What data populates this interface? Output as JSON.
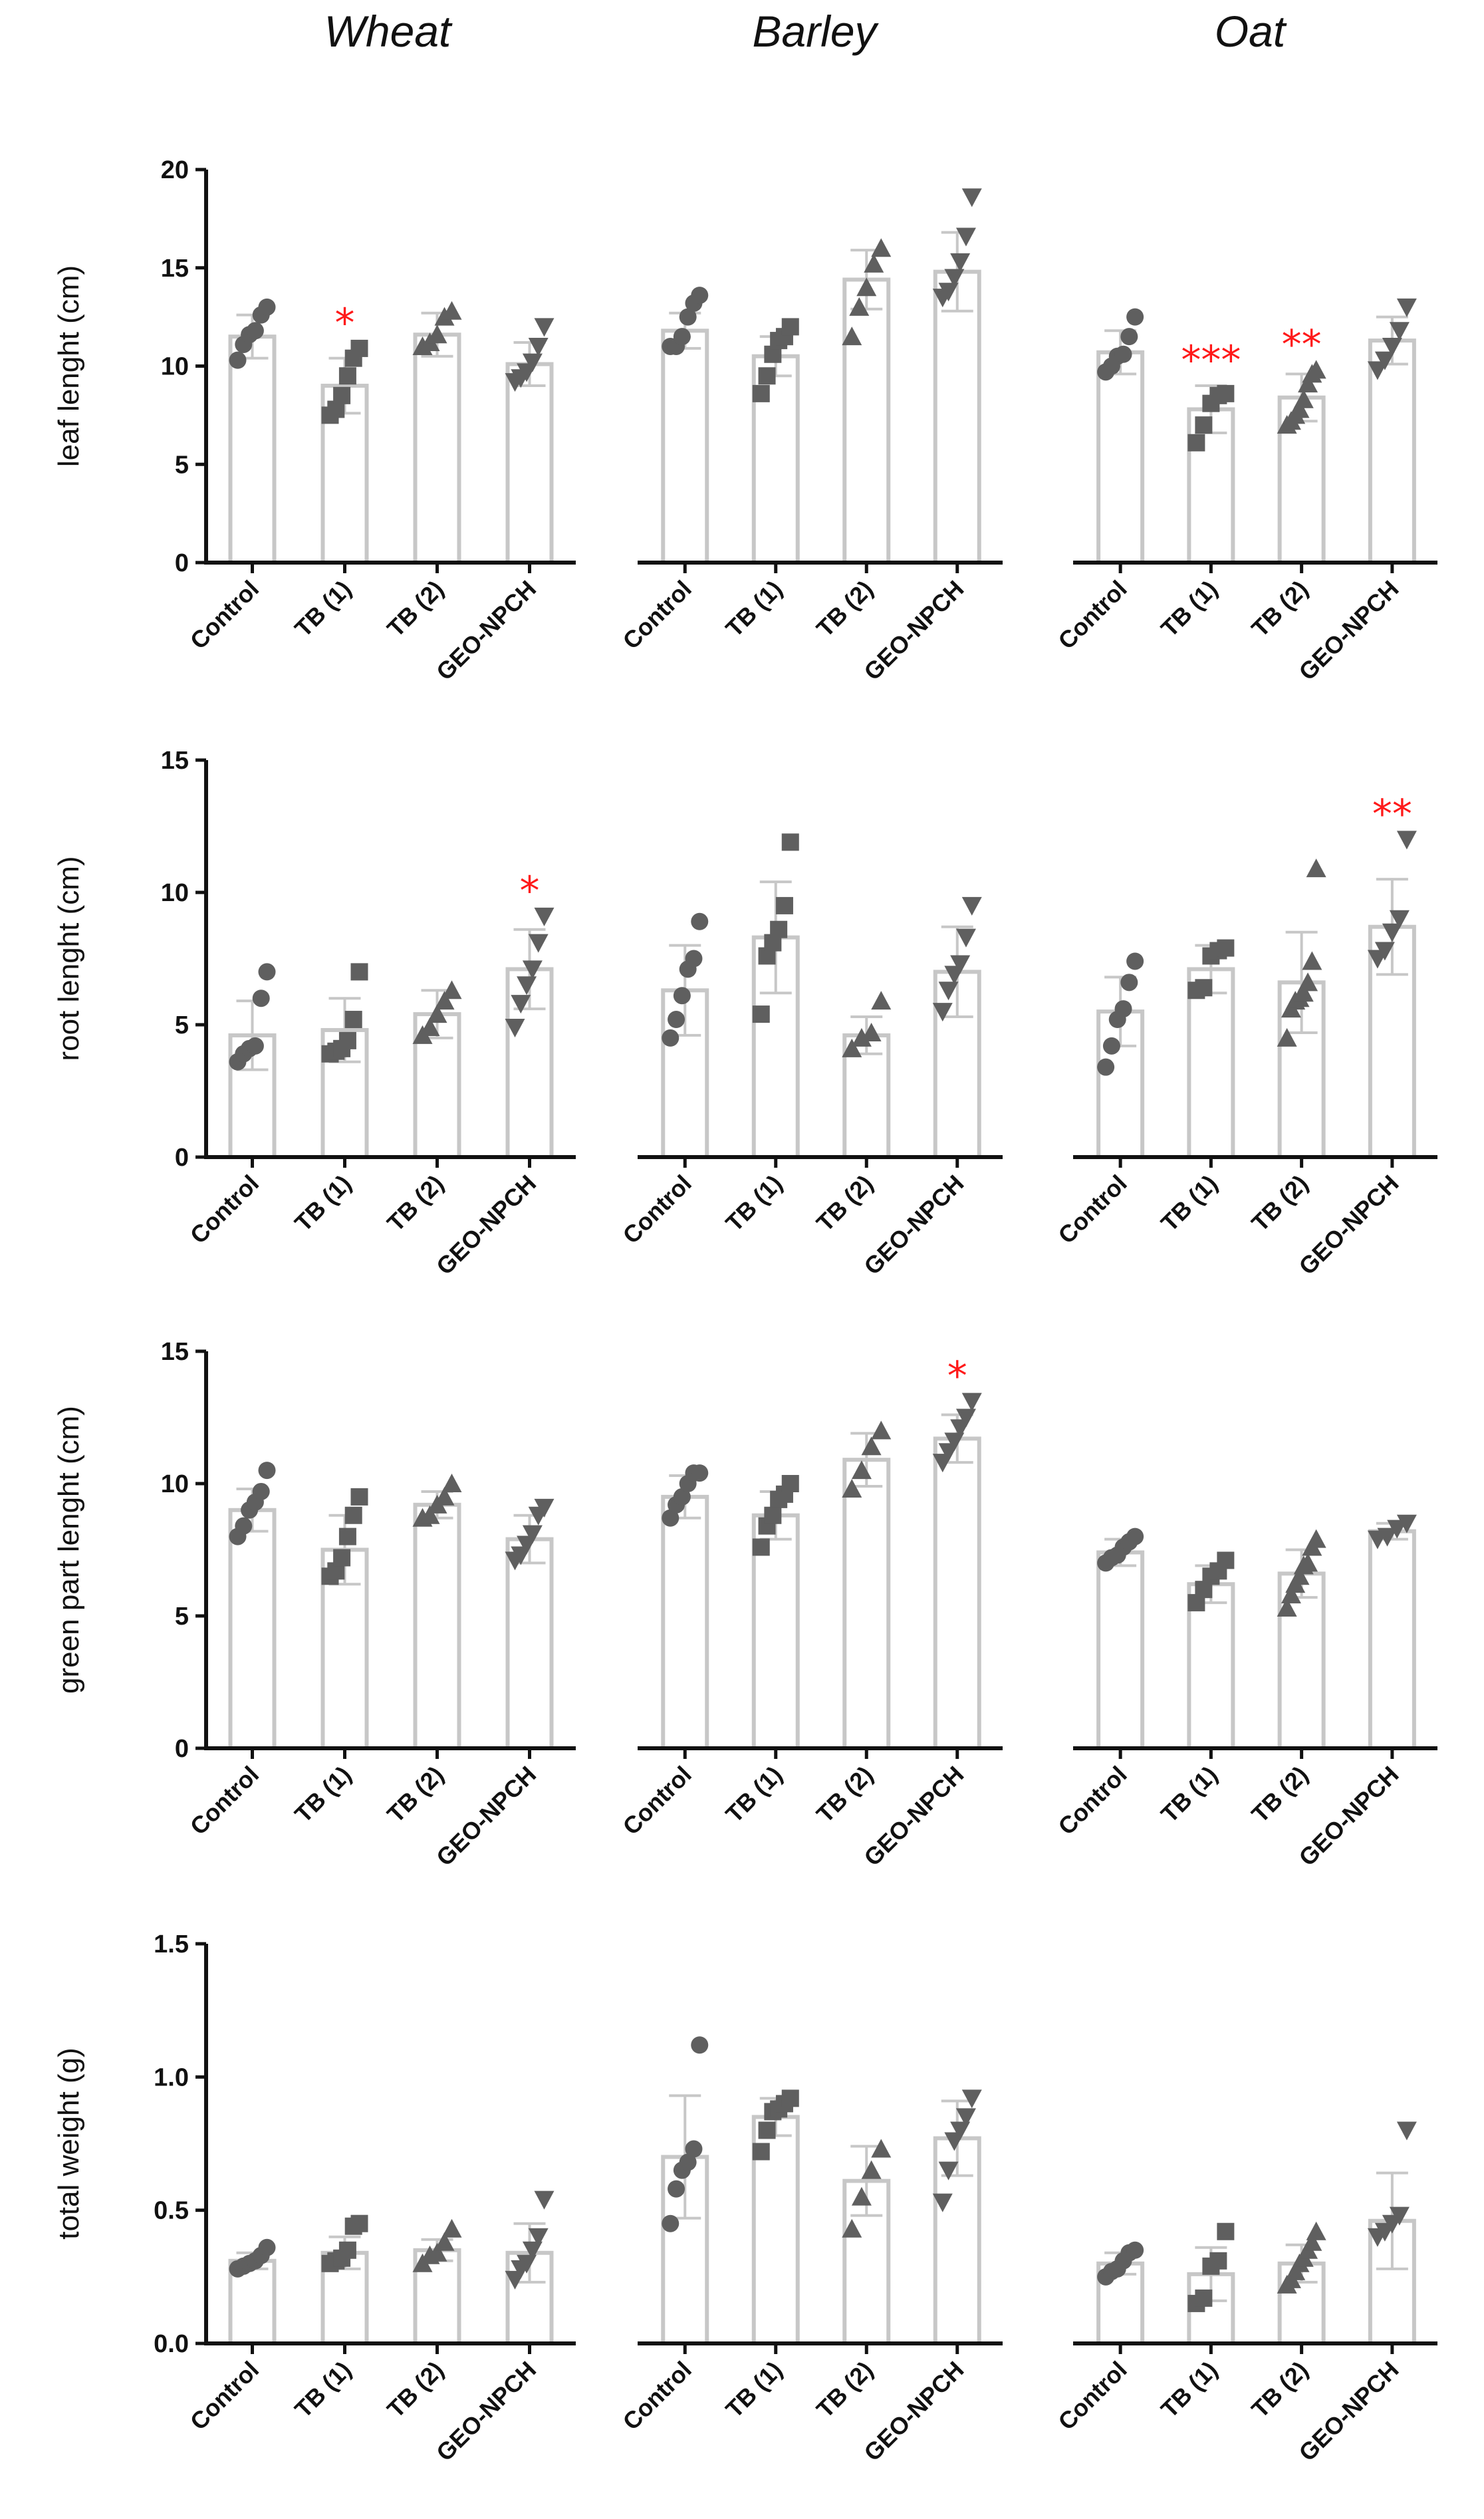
{
  "figure": {
    "columns": [
      "Wheat",
      "Barley",
      "Oat"
    ],
    "colors": {
      "bar": "#c7c7c7",
      "point": "#5f5f5f",
      "error": "#c7c7c7",
      "axis": "#111111",
      "significance": "#ff1a1a"
    },
    "markers": [
      "circle-icon",
      "square-icon",
      "triangle-up-icon",
      "triangle-down-icon"
    ]
  },
  "chart_data": [
    {
      "type": "bar",
      "title": "Wheat",
      "xlabel": "",
      "ylabel": "leaf lenght (cm)",
      "categories": [
        "Control",
        "TB (1)",
        "TB (2)",
        "GEO-NPCH"
      ],
      "ylim": [
        0,
        20
      ],
      "yticks": [
        "0",
        "5",
        "10",
        "15",
        "20"
      ],
      "show_y_axis": true,
      "means": [
        11.5,
        9.0,
        11.6,
        10.1
      ],
      "sd": [
        1.1,
        1.4,
        1.1,
        1.1
      ],
      "points": [
        [
          10.3,
          11.1,
          11.6,
          11.8,
          12.6,
          13.0
        ],
        [
          7.5,
          7.8,
          8.5,
          9.5,
          10.4,
          10.9
        ],
        [
          11.0,
          11.2,
          11.6,
          12.5,
          12.8
        ],
        [
          9.2,
          9.4,
          9.7,
          10.2,
          11.0,
          12.0
        ]
      ],
      "significance": [
        "",
        "*",
        "",
        ""
      ]
    },
    {
      "type": "bar",
      "title": "Barley",
      "xlabel": "",
      "ylabel": "",
      "categories": [
        "Control",
        "TB (1)",
        "TB (2)",
        "GEO-NPCH"
      ],
      "ylim": [
        0,
        20
      ],
      "yticks": [],
      "show_y_axis": false,
      "means": [
        11.8,
        10.5,
        14.4,
        14.8
      ],
      "sd": [
        0.9,
        1.0,
        1.5,
        2.0
      ],
      "points": [
        [
          11.0,
          11.0,
          11.5,
          12.5,
          13.2,
          13.6
        ],
        [
          8.6,
          9.5,
          10.6,
          11.3,
          11.5,
          12.0
        ],
        [
          11.5,
          13.0,
          14.0,
          15.2,
          16.0
        ],
        [
          13.5,
          13.8,
          14.5,
          15.3,
          16.6,
          18.6
        ]
      ],
      "significance": [
        "",
        "",
        "",
        ""
      ]
    },
    {
      "type": "bar",
      "title": "Oat",
      "xlabel": "",
      "ylabel": "",
      "categories": [
        "Control",
        "TB (1)",
        "TB (2)",
        "GEO-NPCH"
      ],
      "ylim": [
        0,
        20
      ],
      "yticks": [],
      "show_y_axis": false,
      "means": [
        10.7,
        7.8,
        8.4,
        11.3
      ],
      "sd": [
        1.1,
        1.2,
        1.2,
        1.2
      ],
      "points": [
        [
          9.7,
          10.0,
          10.5,
          10.6,
          11.5,
          12.5
        ],
        [
          6.1,
          7.0,
          8.1,
          8.5,
          8.6
        ],
        [
          7.0,
          7.2,
          7.5,
          7.8,
          8.3,
          9.1,
          9.6,
          9.8
        ],
        [
          9.8,
          10.3,
          11.0,
          11.8,
          13.0
        ]
      ],
      "significance": [
        "",
        "***",
        "**",
        ""
      ]
    },
    {
      "type": "bar",
      "title": "",
      "xlabel": "",
      "ylabel": "root lenght (cm)",
      "categories": [
        "Control",
        "TB (1)",
        "TB (2)",
        "GEO-NPCH"
      ],
      "ylim": [
        0,
        15
      ],
      "yticks": [
        "0",
        "5",
        "10",
        "15"
      ],
      "show_y_axis": true,
      "means": [
        4.6,
        4.8,
        5.4,
        7.1
      ],
      "sd": [
        1.3,
        1.2,
        0.9,
        1.5
      ],
      "points": [
        [
          3.6,
          3.9,
          4.1,
          4.2,
          6.0,
          7.0
        ],
        [
          3.9,
          4.0,
          4.1,
          4.4,
          5.2,
          7.0
        ],
        [
          4.6,
          4.9,
          5.4,
          5.9,
          6.3
        ],
        [
          4.9,
          5.8,
          6.5,
          7.1,
          8.1,
          9.1
        ]
      ],
      "significance": [
        "",
        "",
        "",
        "*"
      ]
    },
    {
      "type": "bar",
      "title": "",
      "xlabel": "",
      "ylabel": "",
      "categories": [
        "Control",
        "TB (1)",
        "TB (2)",
        "GEO-NPCH"
      ],
      "ylim": [
        0,
        15
      ],
      "yticks": [],
      "show_y_axis": false,
      "means": [
        6.3,
        8.3,
        4.6,
        7.0
      ],
      "sd": [
        1.7,
        2.1,
        0.7,
        1.7
      ],
      "points": [
        [
          4.5,
          5.2,
          6.1,
          7.1,
          7.5,
          8.9
        ],
        [
          5.4,
          7.6,
          8.1,
          8.6,
          9.5,
          11.9
        ],
        [
          4.1,
          4.5,
          4.7,
          5.9
        ],
        [
          5.5,
          6.3,
          6.9,
          7.3,
          8.3,
          9.5
        ]
      ],
      "significance": [
        "",
        "",
        "",
        ""
      ]
    },
    {
      "type": "bar",
      "title": "",
      "xlabel": "",
      "ylabel": "",
      "categories": [
        "Control",
        "TB (1)",
        "TB (2)",
        "GEO-NPCH"
      ],
      "ylim": [
        0,
        15
      ],
      "yticks": [],
      "show_y_axis": false,
      "means": [
        5.5,
        7.1,
        6.6,
        8.7
      ],
      "sd": [
        1.3,
        0.9,
        1.9,
        1.8
      ],
      "points": [
        [
          3.4,
          4.2,
          5.2,
          5.6,
          6.6,
          7.4
        ],
        [
          6.3,
          6.4,
          7.6,
          7.8,
          7.9
        ],
        [
          4.5,
          5.6,
          5.9,
          6.0,
          6.2,
          6.6,
          7.4,
          10.9
        ],
        [
          7.5,
          7.8,
          8.5,
          9.0,
          12.0
        ]
      ],
      "significance": [
        "",
        "",
        "",
        "**"
      ]
    },
    {
      "type": "bar",
      "title": "",
      "xlabel": "",
      "ylabel": "green part lenght (cm)",
      "categories": [
        "Control",
        "TB (1)",
        "TB (2)",
        "GEO-NPCH"
      ],
      "ylim": [
        0,
        15
      ],
      "yticks": [
        "0",
        "5",
        "10",
        "15"
      ],
      "show_y_axis": true,
      "means": [
        9.0,
        7.5,
        9.2,
        7.9
      ],
      "sd": [
        0.8,
        1.3,
        0.5,
        0.9
      ],
      "points": [
        [
          8.0,
          8.4,
          9.0,
          9.3,
          9.7,
          10.5
        ],
        [
          6.5,
          6.7,
          7.2,
          8.0,
          8.8,
          9.5
        ],
        [
          8.7,
          8.8,
          9.2,
          9.5,
          10.0
        ],
        [
          7.1,
          7.3,
          7.7,
          8.1,
          8.8,
          9.1
        ]
      ],
      "significance": [
        "",
        "",
        "",
        ""
      ]
    },
    {
      "type": "bar",
      "title": "",
      "xlabel": "",
      "ylabel": "",
      "categories": [
        "Control",
        "TB (1)",
        "TB (2)",
        "GEO-NPCH"
      ],
      "ylim": [
        0,
        15
      ],
      "yticks": [],
      "show_y_axis": false,
      "means": [
        9.5,
        8.8,
        10.9,
        11.7
      ],
      "sd": [
        0.8,
        0.9,
        1.0,
        0.9
      ],
      "points": [
        [
          8.7,
          9.2,
          9.5,
          10.0,
          10.4,
          10.4
        ],
        [
          7.6,
          8.4,
          8.8,
          9.4,
          9.6,
          10.0
        ],
        [
          9.8,
          10.5,
          11.4,
          12.0
        ],
        [
          10.8,
          11.2,
          11.6,
          12.1,
          12.5,
          13.1
        ]
      ],
      "significance": [
        "",
        "",
        "",
        "*"
      ]
    },
    {
      "type": "bar",
      "title": "",
      "xlabel": "",
      "ylabel": "",
      "categories": [
        "Control",
        "TB (1)",
        "TB (2)",
        "GEO-NPCH"
      ],
      "ylim": [
        0,
        15
      ],
      "yticks": [],
      "show_y_axis": false,
      "means": [
        7.4,
        6.2,
        6.6,
        8.2
      ],
      "sd": [
        0.5,
        0.7,
        0.9,
        0.3
      ],
      "points": [
        [
          7.0,
          7.2,
          7.3,
          7.6,
          7.8,
          8.0
        ],
        [
          5.5,
          6.0,
          6.5,
          6.7,
          7.1
        ],
        [
          5.3,
          5.8,
          6.2,
          6.5,
          6.9,
          7.0,
          7.6,
          7.9
        ],
        [
          7.9,
          8.0,
          8.3,
          8.5
        ]
      ],
      "significance": [
        "",
        "",
        "",
        ""
      ]
    },
    {
      "type": "bar",
      "title": "",
      "xlabel": "",
      "ylabel": "total weight (g)",
      "categories": [
        "Control",
        "TB (1)",
        "TB (2)",
        "GEO-NPCH"
      ],
      "ylim": [
        0,
        1.5
      ],
      "yticks": [
        "0.0",
        "0.5",
        "1.0",
        "1.5"
      ],
      "show_y_axis": true,
      "means": [
        0.31,
        0.34,
        0.35,
        0.34
      ],
      "sd": [
        0.03,
        0.06,
        0.04,
        0.11
      ],
      "points": [
        [
          0.28,
          0.29,
          0.3,
          0.31,
          0.33,
          0.36
        ],
        [
          0.3,
          0.31,
          0.32,
          0.35,
          0.44,
          0.45
        ],
        [
          0.3,
          0.33,
          0.34,
          0.38,
          0.43
        ],
        [
          0.24,
          0.28,
          0.3,
          0.35,
          0.4,
          0.54
        ]
      ],
      "significance": [
        "",
        "",
        "",
        ""
      ]
    },
    {
      "type": "bar",
      "title": "",
      "xlabel": "",
      "ylabel": "",
      "categories": [
        "Control",
        "TB (1)",
        "TB (2)",
        "GEO-NPCH"
      ],
      "ylim": [
        0,
        1.5
      ],
      "yticks": [],
      "show_y_axis": false,
      "means": [
        0.7,
        0.85,
        0.61,
        0.77
      ],
      "sd": [
        0.23,
        0.07,
        0.13,
        0.14
      ],
      "points": [
        [
          0.45,
          0.58,
          0.65,
          0.68,
          0.73,
          1.12
        ],
        [
          0.72,
          0.8,
          0.87,
          0.88,
          0.9,
          0.92
        ],
        [
          0.43,
          0.55,
          0.65,
          0.73
        ],
        [
          0.53,
          0.65,
          0.76,
          0.8,
          0.85,
          0.92
        ]
      ],
      "significance": [
        "",
        "",
        "",
        ""
      ]
    },
    {
      "type": "bar",
      "title": "",
      "xlabel": "",
      "ylabel": "",
      "categories": [
        "Control",
        "TB (1)",
        "TB (2)",
        "GEO-NPCH"
      ],
      "ylim": [
        0,
        1.5
      ],
      "yticks": [],
      "show_y_axis": false,
      "means": [
        0.3,
        0.26,
        0.3,
        0.46
      ],
      "sd": [
        0.04,
        0.1,
        0.07,
        0.18
      ],
      "points": [
        [
          0.25,
          0.27,
          0.28,
          0.31,
          0.34,
          0.35
        ],
        [
          0.15,
          0.17,
          0.29,
          0.31,
          0.42
        ],
        [
          0.22,
          0.24,
          0.27,
          0.3,
          0.32,
          0.35,
          0.38,
          0.42
        ],
        [
          0.4,
          0.42,
          0.45,
          0.48,
          0.8
        ]
      ],
      "significance": [
        "",
        "",
        "",
        ""
      ]
    }
  ]
}
